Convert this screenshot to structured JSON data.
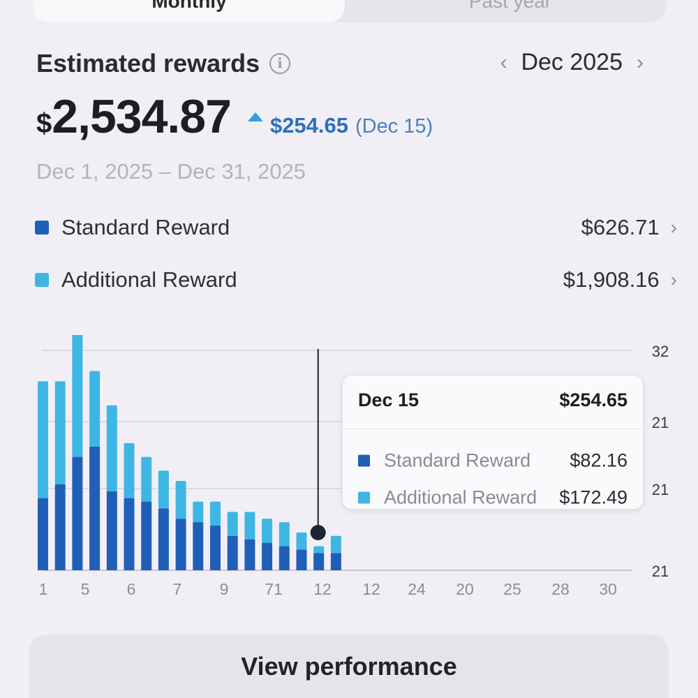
{
  "tabs": {
    "monthly": "Monthly",
    "past_year": "Past year"
  },
  "header": {
    "title": "Estimated rewards",
    "month": "Dec 2025"
  },
  "summary": {
    "currency": "$",
    "total": "2,534.87",
    "delta": "$254.65",
    "delta_date": "(Dec 15)",
    "range": "Dec 1, 2025 – Dec 31, 2025"
  },
  "legend": [
    {
      "label": "Standard Reward",
      "value": "$626.71",
      "color": "#1f5fb8"
    },
    {
      "label": "Additional Reward",
      "value": "$1,908.16",
      "color": "#3eb6e3"
    }
  ],
  "tooltip": {
    "date": "Dec 15",
    "total": "$254.65",
    "rows": [
      {
        "label": "Standard Reward",
        "value": "$82.16"
      },
      {
        "label": "Additional Reward",
        "value": "$172.49"
      }
    ]
  },
  "chart_data": {
    "type": "bar",
    "stacked": true,
    "x_tick_labels": [
      "1",
      "5",
      "6",
      "7",
      "9",
      "71",
      "12",
      "12",
      "24",
      "20",
      "25",
      "28",
      "30"
    ],
    "y_tick_labels": [
      "32",
      "21",
      "21",
      "21"
    ],
    "bar_count": 18,
    "series": [
      {
        "name": "Standard Reward",
        "color": "#1f5fb8",
        "values": [
          10.5,
          12.5,
          16.5,
          18.0,
          11.5,
          10.5,
          10.0,
          9.0,
          7.5,
          7.0,
          6.5,
          5.0,
          4.5,
          4.0,
          3.5,
          3.0,
          2.5,
          2.5
        ]
      },
      {
        "name": "Additional Reward",
        "color": "#3eb6e3",
        "values": [
          17.0,
          15.0,
          18.5,
          11.0,
          12.5,
          8.0,
          6.5,
          5.5,
          5.5,
          3.0,
          3.5,
          3.5,
          4.0,
          3.5,
          3.5,
          2.5,
          1.0,
          2.5
        ]
      }
    ],
    "ymax": 32,
    "highlight_index": 16,
    "legend": "top",
    "grid": true
  },
  "cta": {
    "label": "View performance"
  }
}
